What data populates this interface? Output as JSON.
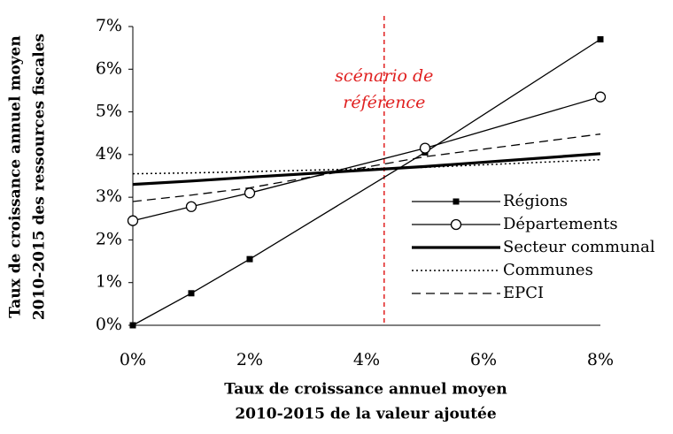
{
  "chart_data": {
    "type": "line",
    "y_label": [
      "Taux de croissance annuel moyen",
      "2010-2015 des ressources fiscales"
    ],
    "x_label": [
      "Taux de croissance annuel moyen",
      "2010-2015 de la valeur ajoutée"
    ],
    "annotation": [
      "scénario de",
      "référence"
    ],
    "annotation_color": "#e02020",
    "reference_x": 4.3,
    "x": [
      0,
      1,
      2,
      5,
      8
    ],
    "series": [
      {
        "name": "Régions",
        "color": "#000000",
        "width": 1.3,
        "dash": "none",
        "marker": "square",
        "values": [
          0,
          0.75,
          1.55,
          4.05,
          6.7
        ]
      },
      {
        "name": "Départements",
        "color": "#000000",
        "width": 1.3,
        "dash": "none",
        "marker": "circle",
        "values": [
          2.45,
          2.78,
          3.1,
          4.15,
          5.35
        ]
      },
      {
        "name": "Secteur communal",
        "color": "#000000",
        "width": 3.2,
        "dash": "none",
        "marker": "none",
        "values": [
          3.3,
          3.38,
          3.47,
          3.72,
          4.02
        ]
      },
      {
        "name": "Communes",
        "color": "#000000",
        "width": 1.5,
        "dash": "2 3",
        "marker": "none",
        "values": [
          3.55,
          3.57,
          3.6,
          3.7,
          3.88
        ]
      },
      {
        "name": "EPCI",
        "color": "#000000",
        "width": 1.3,
        "dash": "10 6",
        "marker": "none",
        "values": [
          2.9,
          3.05,
          3.22,
          3.95,
          4.48
        ]
      }
    ],
    "xlim": [
      0,
      8
    ],
    "xticks": [
      {
        "value": 0,
        "label": "0%"
      },
      {
        "value": 2,
        "label": "2%"
      },
      {
        "value": 4,
        "label": "4%"
      },
      {
        "value": 6,
        "label": "6%"
      },
      {
        "value": 8,
        "label": "8%"
      }
    ],
    "ylim": [
      0,
      7
    ],
    "yticks": [
      {
        "value": 0,
        "label": "0%"
      },
      {
        "value": 1,
        "label": "1%"
      },
      {
        "value": 2,
        "label": "2%"
      },
      {
        "value": 3,
        "label": "3%"
      },
      {
        "value": 4,
        "label": "4%"
      },
      {
        "value": 5,
        "label": "5%"
      },
      {
        "value": 6,
        "label": "6%"
      },
      {
        "value": 7,
        "label": "7%"
      }
    ],
    "grid": false
  }
}
